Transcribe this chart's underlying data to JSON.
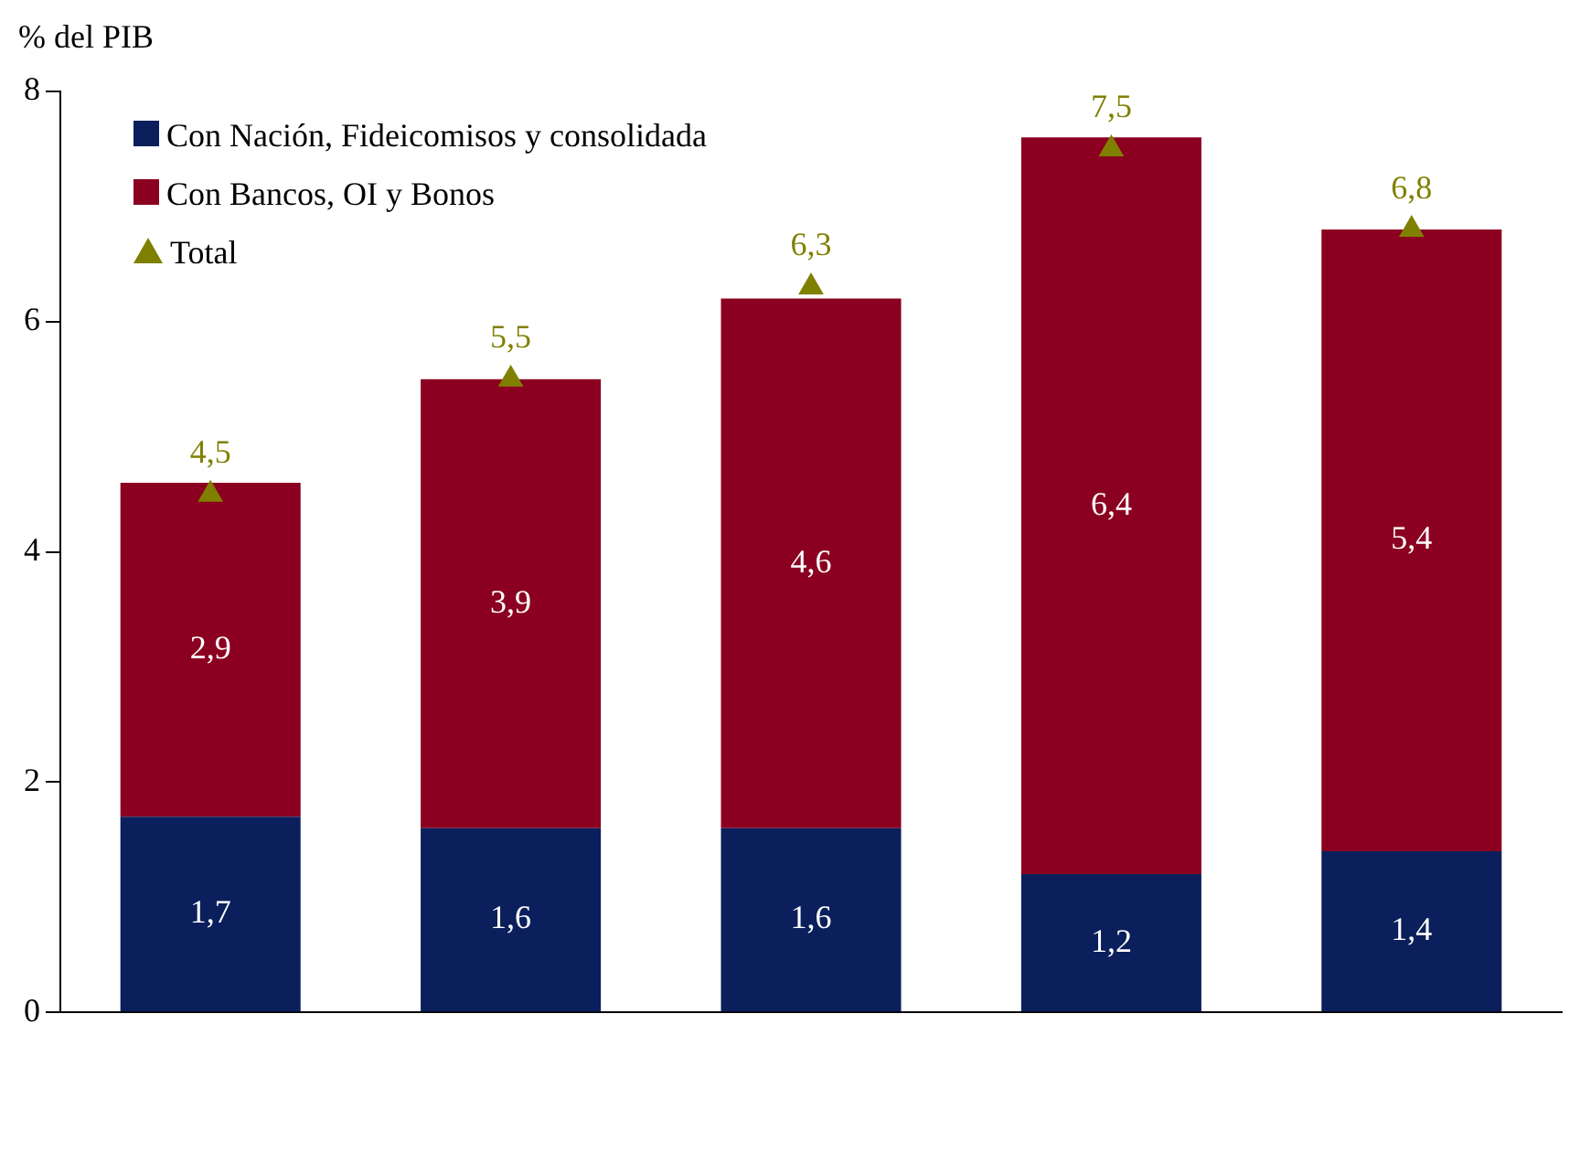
{
  "chart_data": {
    "type": "bar",
    "stacked": true,
    "ylabel": "% del PIB",
    "categories": [
      null,
      null,
      null,
      null,
      null
    ],
    "ylim": [
      0,
      8
    ],
    "yticks": [
      0,
      2,
      4,
      6,
      8
    ],
    "grid": false,
    "legend": "top left",
    "series": [
      {
        "name": "Con Nación, Fideicomisos y consolidada",
        "color": "#0b1f5c",
        "values": [
          1.7,
          1.6,
          1.6,
          1.2,
          1.4
        ],
        "value_labels": [
          "1,7",
          "1,6",
          "1,6",
          "1,2",
          "1,4"
        ]
      },
      {
        "name": "Con Bancos, OI y Bonos",
        "color": "#8b0020",
        "values": [
          2.9,
          3.9,
          4.6,
          6.4,
          5.4
        ],
        "value_labels": [
          "2,9",
          "3,9",
          "4,6",
          "6,4",
          "5,4"
        ]
      },
      {
        "name": "Total",
        "type": "scatter",
        "marker": "triangle",
        "color": "#808000",
        "values": [
          4.5,
          5.5,
          6.3,
          7.5,
          6.8
        ],
        "value_labels": [
          "4,5",
          "5,5",
          "6,3",
          "7,5",
          "6,8"
        ]
      }
    ]
  }
}
